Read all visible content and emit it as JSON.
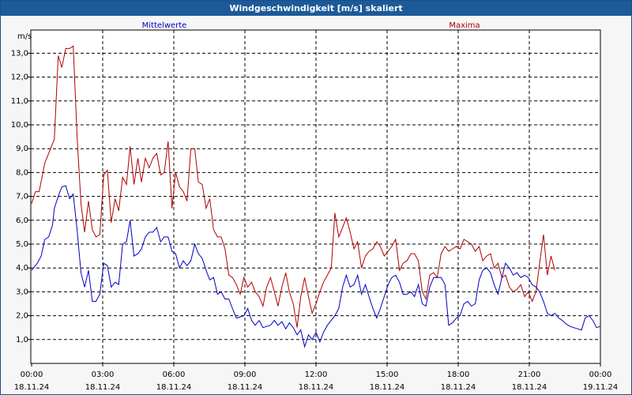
{
  "window": {
    "title": "Windgeschwindigkeit [m/s] skaliert"
  },
  "chart_data": {
    "type": "line",
    "title": "Windgeschwindigkeit [m/s] skaliert",
    "ylabel": "m/s",
    "xlabel": "",
    "ylim": [
      0,
      14
    ],
    "x_range_hours": [
      0,
      24
    ],
    "grid": true,
    "legend_placement": "top",
    "yticks": [
      "1,0",
      "2,0",
      "3,0",
      "4,0",
      "5,0",
      "6,0",
      "7,0",
      "8,0",
      "9,0",
      "10,0",
      "11,0",
      "12,0",
      "13,0"
    ],
    "xticks": [
      {
        "time": "00:00",
        "date": "18.11.24"
      },
      {
        "time": "03:00",
        "date": "18.11.24"
      },
      {
        "time": "06:00",
        "date": "18.11.24"
      },
      {
        "time": "09:00",
        "date": "18.11.24"
      },
      {
        "time": "12:00",
        "date": "18.11.24"
      },
      {
        "time": "15:00",
        "date": "18.11.24"
      },
      {
        "time": "18:00",
        "date": "18.11.24"
      },
      {
        "time": "21:00",
        "date": "18.11.24"
      },
      {
        "time": "00:00",
        "date": "19.11.24"
      }
    ],
    "series": [
      {
        "name": "Mittelwerte",
        "color": "#0000c0",
        "points": [
          [
            0.0,
            3.9
          ],
          [
            0.25,
            4.2
          ],
          [
            0.42,
            4.5
          ],
          [
            0.58,
            5.2
          ],
          [
            0.75,
            5.3
          ],
          [
            0.92,
            5.8
          ],
          [
            1.0,
            6.5
          ],
          [
            1.17,
            7.0
          ],
          [
            1.33,
            7.4
          ],
          [
            1.5,
            7.45
          ],
          [
            1.67,
            6.9
          ],
          [
            1.83,
            7.1
          ],
          [
            2.0,
            5.6
          ],
          [
            2.17,
            3.8
          ],
          [
            2.33,
            3.2
          ],
          [
            2.5,
            3.9
          ],
          [
            2.67,
            2.6
          ],
          [
            2.83,
            2.6
          ],
          [
            3.0,
            2.9
          ],
          [
            3.17,
            4.2
          ],
          [
            3.33,
            4.1
          ],
          [
            3.5,
            3.2
          ],
          [
            3.67,
            3.4
          ],
          [
            3.83,
            3.3
          ],
          [
            4.0,
            5.0
          ],
          [
            4.17,
            5.1
          ],
          [
            4.33,
            6.0
          ],
          [
            4.5,
            4.5
          ],
          [
            4.67,
            4.6
          ],
          [
            4.83,
            4.8
          ],
          [
            5.0,
            5.3
          ],
          [
            5.17,
            5.5
          ],
          [
            5.33,
            5.5
          ],
          [
            5.5,
            5.7
          ],
          [
            5.67,
            5.1
          ],
          [
            5.83,
            5.3
          ],
          [
            6.0,
            5.3
          ],
          [
            6.17,
            4.7
          ],
          [
            6.33,
            4.6
          ],
          [
            6.5,
            4.0
          ],
          [
            6.67,
            4.3
          ],
          [
            6.83,
            4.1
          ],
          [
            7.0,
            4.3
          ],
          [
            7.17,
            5.0
          ],
          [
            7.33,
            4.6
          ],
          [
            7.5,
            4.4
          ],
          [
            7.67,
            3.9
          ],
          [
            7.83,
            3.5
          ],
          [
            8.0,
            3.6
          ],
          [
            8.17,
            2.9
          ],
          [
            8.33,
            3.0
          ],
          [
            8.5,
            2.7
          ],
          [
            8.67,
            2.7
          ],
          [
            8.83,
            2.3
          ],
          [
            9.0,
            1.9
          ],
          [
            9.17,
            1.95
          ],
          [
            9.33,
            2.0
          ],
          [
            9.5,
            2.3
          ],
          [
            9.67,
            1.8
          ],
          [
            9.83,
            1.6
          ],
          [
            10.0,
            1.8
          ],
          [
            10.17,
            1.5
          ],
          [
            10.33,
            1.55
          ],
          [
            10.5,
            1.6
          ],
          [
            10.67,
            1.8
          ],
          [
            10.83,
            1.6
          ],
          [
            11.0,
            1.75
          ],
          [
            11.17,
            1.45
          ],
          [
            11.33,
            1.7
          ],
          [
            11.5,
            1.5
          ],
          [
            11.67,
            1.2
          ],
          [
            11.83,
            1.4
          ],
          [
            12.0,
            0.7
          ],
          [
            12.17,
            1.2
          ],
          [
            12.33,
            1.0
          ],
          [
            12.5,
            1.3
          ],
          [
            12.67,
            0.9
          ],
          [
            12.83,
            1.3
          ],
          [
            13.0,
            1.6
          ],
          [
            13.17,
            1.8
          ],
          [
            13.33,
            2.0
          ],
          [
            13.5,
            2.3
          ],
          [
            13.67,
            3.2
          ],
          [
            13.83,
            3.7
          ],
          [
            14.0,
            3.2
          ],
          [
            14.17,
            3.3
          ],
          [
            14.33,
            3.7
          ],
          [
            14.5,
            2.9
          ],
          [
            14.67,
            3.3
          ],
          [
            14.83,
            2.8
          ],
          [
            15.0,
            2.3
          ],
          [
            15.17,
            1.9
          ],
          [
            15.33,
            2.3
          ],
          [
            15.5,
            2.8
          ],
          [
            15.67,
            3.3
          ],
          [
            15.83,
            3.6
          ],
          [
            16.0,
            3.7
          ],
          [
            16.17,
            3.4
          ],
          [
            16.33,
            2.9
          ],
          [
            16.5,
            2.9
          ],
          [
            16.67,
            3.0
          ],
          [
            16.83,
            2.8
          ],
          [
            17.0,
            3.3
          ],
          [
            17.17,
            2.5
          ],
          [
            17.33,
            2.4
          ],
          [
            17.5,
            3.2
          ],
          [
            17.67,
            3.6
          ],
          [
            17.83,
            3.6
          ],
          [
            18.0,
            3.6
          ],
          [
            18.17,
            3.3
          ],
          [
            18.33,
            1.6
          ],
          [
            18.5,
            1.7
          ],
          [
            18.67,
            1.9
          ],
          [
            18.83,
            2.0
          ],
          [
            19.0,
            2.5
          ],
          [
            19.17,
            2.6
          ],
          [
            19.33,
            2.4
          ],
          [
            19.5,
            2.5
          ],
          [
            19.67,
            3.5
          ],
          [
            19.83,
            3.9
          ],
          [
            20.0,
            4.0
          ],
          [
            20.17,
            3.8
          ],
          [
            20.33,
            3.3
          ],
          [
            20.5,
            2.9
          ],
          [
            20.67,
            3.6
          ],
          [
            20.83,
            4.2
          ],
          [
            21.0,
            4.0
          ],
          [
            21.17,
            3.7
          ],
          [
            21.33,
            3.8
          ],
          [
            21.5,
            3.6
          ],
          [
            21.67,
            3.7
          ],
          [
            21.83,
            3.6
          ],
          [
            22.0,
            3.3
          ],
          [
            22.17,
            3.2
          ],
          [
            22.33,
            3.0
          ],
          [
            22.5,
            2.6
          ],
          [
            22.67,
            2.1
          ],
          [
            22.83,
            2.0
          ],
          [
            23.0,
            2.1
          ],
          [
            23.17,
            1.9
          ],
          [
            23.33,
            1.8
          ],
          [
            23.5,
            1.65
          ],
          [
            23.67,
            1.55
          ],
          [
            23.83,
            1.5
          ],
          [
            24.0,
            1.45
          ],
          [
            24.17,
            1.4
          ],
          [
            24.33,
            1.9
          ],
          [
            24.5,
            2.0
          ],
          [
            24.67,
            1.8
          ],
          [
            24.83,
            1.5
          ],
          [
            25.0,
            1.55
          ]
        ]
      },
      {
        "name": "Maxima",
        "color": "#b00000",
        "points": [
          [
            0.0,
            6.7
          ],
          [
            0.17,
            7.2
          ],
          [
            0.33,
            7.2
          ],
          [
            0.5,
            8.0
          ],
          [
            0.58,
            8.4
          ],
          [
            0.75,
            8.8
          ],
          [
            1.0,
            9.4
          ],
          [
            1.17,
            12.9
          ],
          [
            1.33,
            12.4
          ],
          [
            1.5,
            13.2
          ],
          [
            1.67,
            13.2
          ],
          [
            1.83,
            13.3
          ],
          [
            2.0,
            9.5
          ],
          [
            2.17,
            6.7
          ],
          [
            2.33,
            5.5
          ],
          [
            2.5,
            6.8
          ],
          [
            2.67,
            5.6
          ],
          [
            2.83,
            5.3
          ],
          [
            3.0,
            5.4
          ],
          [
            3.17,
            7.9
          ],
          [
            3.33,
            8.1
          ],
          [
            3.5,
            5.9
          ],
          [
            3.67,
            6.9
          ],
          [
            3.83,
            6.4
          ],
          [
            4.0,
            7.8
          ],
          [
            4.17,
            7.5
          ],
          [
            4.33,
            9.1
          ],
          [
            4.5,
            7.5
          ],
          [
            4.67,
            8.6
          ],
          [
            4.83,
            7.6
          ],
          [
            5.0,
            8.6
          ],
          [
            5.17,
            8.2
          ],
          [
            5.33,
            8.6
          ],
          [
            5.5,
            8.8
          ],
          [
            5.67,
            7.9
          ],
          [
            5.83,
            8.0
          ],
          [
            6.0,
            9.3
          ],
          [
            6.17,
            6.5
          ],
          [
            6.33,
            8.0
          ],
          [
            6.5,
            7.4
          ],
          [
            6.67,
            7.2
          ],
          [
            6.83,
            6.8
          ],
          [
            7.0,
            9.0
          ],
          [
            7.17,
            9.0
          ],
          [
            7.33,
            7.6
          ],
          [
            7.5,
            7.5
          ],
          [
            7.67,
            6.5
          ],
          [
            7.83,
            6.9
          ],
          [
            8.0,
            5.6
          ],
          [
            8.17,
            5.3
          ],
          [
            8.33,
            5.3
          ],
          [
            8.5,
            4.8
          ],
          [
            8.67,
            3.7
          ],
          [
            8.83,
            3.6
          ],
          [
            9.0,
            3.3
          ],
          [
            9.17,
            2.9
          ],
          [
            9.33,
            3.6
          ],
          [
            9.5,
            3.2
          ],
          [
            9.67,
            3.4
          ],
          [
            9.83,
            3.0
          ],
          [
            10.0,
            2.8
          ],
          [
            10.17,
            2.4
          ],
          [
            10.33,
            3.2
          ],
          [
            10.5,
            3.6
          ],
          [
            10.67,
            3.0
          ],
          [
            10.83,
            2.4
          ],
          [
            11.0,
            3.2
          ],
          [
            11.17,
            3.8
          ],
          [
            11.33,
            3.0
          ],
          [
            11.5,
            2.5
          ],
          [
            11.67,
            1.5
          ],
          [
            11.83,
            2.8
          ],
          [
            12.0,
            3.6
          ],
          [
            12.17,
            2.8
          ],
          [
            12.33,
            2.1
          ],
          [
            12.5,
            2.5
          ],
          [
            12.67,
            3.0
          ],
          [
            12.83,
            3.4
          ],
          [
            13.0,
            3.7
          ],
          [
            13.17,
            4.0
          ],
          [
            13.33,
            6.3
          ],
          [
            13.5,
            5.3
          ],
          [
            13.67,
            5.7
          ],
          [
            13.83,
            6.1
          ],
          [
            14.0,
            5.5
          ],
          [
            14.17,
            4.8
          ],
          [
            14.33,
            5.1
          ],
          [
            14.5,
            4.0
          ],
          [
            14.67,
            4.5
          ],
          [
            14.83,
            4.7
          ],
          [
            15.0,
            4.8
          ],
          [
            15.17,
            5.1
          ],
          [
            15.33,
            4.9
          ],
          [
            15.5,
            4.5
          ],
          [
            15.67,
            4.7
          ],
          [
            15.83,
            4.9
          ],
          [
            16.0,
            5.2
          ],
          [
            16.17,
            3.9
          ],
          [
            16.33,
            4.2
          ],
          [
            16.5,
            4.3
          ],
          [
            16.67,
            4.6
          ],
          [
            16.83,
            4.6
          ],
          [
            17.0,
            4.3
          ],
          [
            17.17,
            3.0
          ],
          [
            17.33,
            2.7
          ],
          [
            17.5,
            3.7
          ],
          [
            17.67,
            3.8
          ],
          [
            17.83,
            3.6
          ],
          [
            18.0,
            4.6
          ],
          [
            18.17,
            4.9
          ],
          [
            18.33,
            4.7
          ],
          [
            18.5,
            4.8
          ],
          [
            18.67,
            4.9
          ],
          [
            18.83,
            4.8
          ],
          [
            19.0,
            5.2
          ],
          [
            19.17,
            5.1
          ],
          [
            19.33,
            5.0
          ],
          [
            19.5,
            4.7
          ],
          [
            19.67,
            4.9
          ],
          [
            19.83,
            4.3
          ],
          [
            20.0,
            4.5
          ],
          [
            20.17,
            4.6
          ],
          [
            20.33,
            4.0
          ],
          [
            20.5,
            4.2
          ],
          [
            20.67,
            3.6
          ],
          [
            20.83,
            3.7
          ],
          [
            21.0,
            3.2
          ],
          [
            21.17,
            3.0
          ],
          [
            21.33,
            3.1
          ],
          [
            21.5,
            3.3
          ],
          [
            21.67,
            2.8
          ],
          [
            21.83,
            3.0
          ],
          [
            22.0,
            2.6
          ],
          [
            22.17,
            3.0
          ],
          [
            22.33,
            4.2
          ],
          [
            22.5,
            5.4
          ],
          [
            22.67,
            3.7
          ],
          [
            22.83,
            4.5
          ],
          [
            23.0,
            3.9
          ]
        ]
      }
    ]
  }
}
